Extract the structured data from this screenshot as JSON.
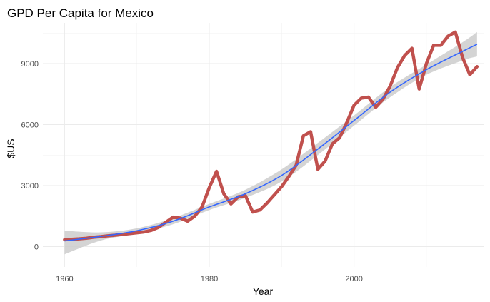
{
  "chart_data": {
    "type": "line",
    "title": "GPD Per Capita for Mexico",
    "xlabel": "Year",
    "ylabel": "$US",
    "xlim": [
      1957,
      2018
    ],
    "ylim": [
      -1000,
      11000
    ],
    "x_ticks": [
      1960,
      1980,
      2000
    ],
    "x_tick_labels": [
      "1960",
      "1980",
      "2000"
    ],
    "y_ticks": [
      0,
      3000,
      6000,
      9000
    ],
    "y_tick_labels": [
      "0",
      "3000",
      "6000",
      "9000"
    ],
    "grid": true,
    "legend": "none",
    "series": [
      {
        "role": "observed",
        "color": "#c0504d",
        "x": [
          1960,
          1961,
          1962,
          1963,
          1964,
          1965,
          1966,
          1967,
          1968,
          1969,
          1970,
          1971,
          1972,
          1973,
          1974,
          1975,
          1976,
          1977,
          1978,
          1979,
          1980,
          1981,
          1982,
          1983,
          1984,
          1985,
          1986,
          1987,
          1988,
          1989,
          1990,
          1991,
          1992,
          1993,
          1994,
          1995,
          1996,
          1997,
          1998,
          1999,
          2000,
          2001,
          2002,
          2003,
          2004,
          2005,
          2006,
          2007,
          2008,
          2009,
          2010,
          2011,
          2012,
          2013,
          2014,
          2015,
          2016,
          2017
        ],
        "y": [
          340,
          360,
          380,
          410,
          460,
          490,
          530,
          560,
          600,
          640,
          680,
          720,
          800,
          950,
          1200,
          1450,
          1400,
          1250,
          1500,
          1950,
          2900,
          3700,
          2600,
          2100,
          2450,
          2500,
          1700,
          1800,
          2150,
          2550,
          2950,
          3450,
          4000,
          5450,
          5650,
          3800,
          4200,
          5050,
          5350,
          6100,
          6950,
          7300,
          7350,
          6850,
          7250,
          7900,
          8800,
          9400,
          9750,
          7750,
          9000,
          9900,
          9900,
          10350,
          10550,
          9300,
          8450,
          8850
        ]
      },
      {
        "role": "smooth",
        "color": "#3366ff",
        "x": [
          1960,
          1965,
          1970,
          1975,
          1980,
          1985,
          1990,
          1995,
          2000,
          2005,
          2010,
          2015,
          2017
        ],
        "y": [
          280,
          500,
          780,
          1250,
          1950,
          2600,
          3500,
          4800,
          6200,
          7600,
          8700,
          9600,
          9950
        ]
      },
      {
        "role": "confidence-band",
        "color": "#cccccc",
        "x": [
          1960,
          1965,
          1970,
          1975,
          1980,
          1985,
          1990,
          1995,
          2000,
          2005,
          2010,
          2015,
          2017
        ],
        "upper": [
          780,
          700,
          900,
          1400,
          2100,
          2800,
          3800,
          5100,
          6450,
          7850,
          8950,
          10050,
          10550
        ],
        "lower": [
          -380,
          300,
          650,
          1100,
          1800,
          2400,
          3200,
          4500,
          5950,
          7350,
          8450,
          9150,
          9350
        ]
      }
    ]
  }
}
